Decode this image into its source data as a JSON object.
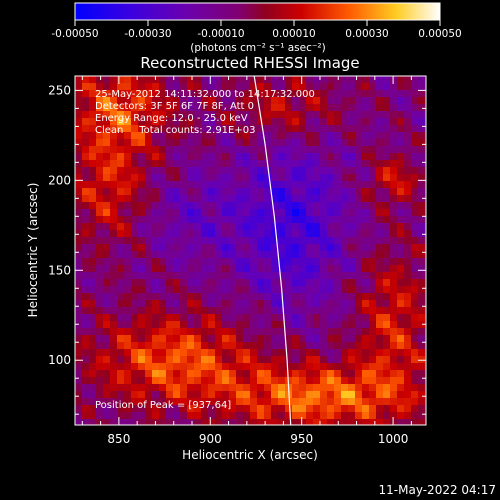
{
  "chart_data": {
    "type": "heatmap",
    "title": "Reconstructed RHESSI Image",
    "xlabel": "Heliocentric X (arcsec)",
    "ylabel": "Heliocentric Y (arcsec)",
    "x_range": [
      826,
      1018
    ],
    "y_range": [
      64,
      258
    ],
    "x_ticks": [
      850,
      900,
      950,
      1000
    ],
    "y_ticks": [
      100,
      150,
      200,
      250
    ],
    "colorbar": {
      "min": -0.0005,
      "max": 0.0005,
      "ticks": [
        "-0.00050",
        "-0.00030",
        "-0.00010",
        "0.00010",
        "0.00030",
        "0.00050"
      ],
      "units_label": "(photons cm⁻² s⁻¹ asec⁻²)",
      "colors": [
        "#0000ff",
        "#5a00c8",
        "#7a00a0",
        "#8a0030",
        "#cc0000",
        "#ff5500",
        "#ffaa00",
        "#ffee33",
        "#ffffff"
      ]
    },
    "annotations": [
      "25-May-2012 14:11:32.000 to 14:17:32.000",
      "Detectors: 3F 5F 6F 7F 8F, Att 0",
      "Energy Range: 12.0 - 25.0 keV",
      "Clean     Total counts: 2.91E+03"
    ],
    "peak_label": "Position of Peak = [937,64]",
    "peak": [
      937,
      64
    ],
    "limb_curve": [
      [
        924,
        258
      ],
      [
        930,
        220
      ],
      [
        935,
        180
      ],
      [
        939,
        140
      ],
      [
        942,
        100
      ],
      [
        944,
        64
      ]
    ]
  },
  "timestamp": "11-May-2022 04:17"
}
